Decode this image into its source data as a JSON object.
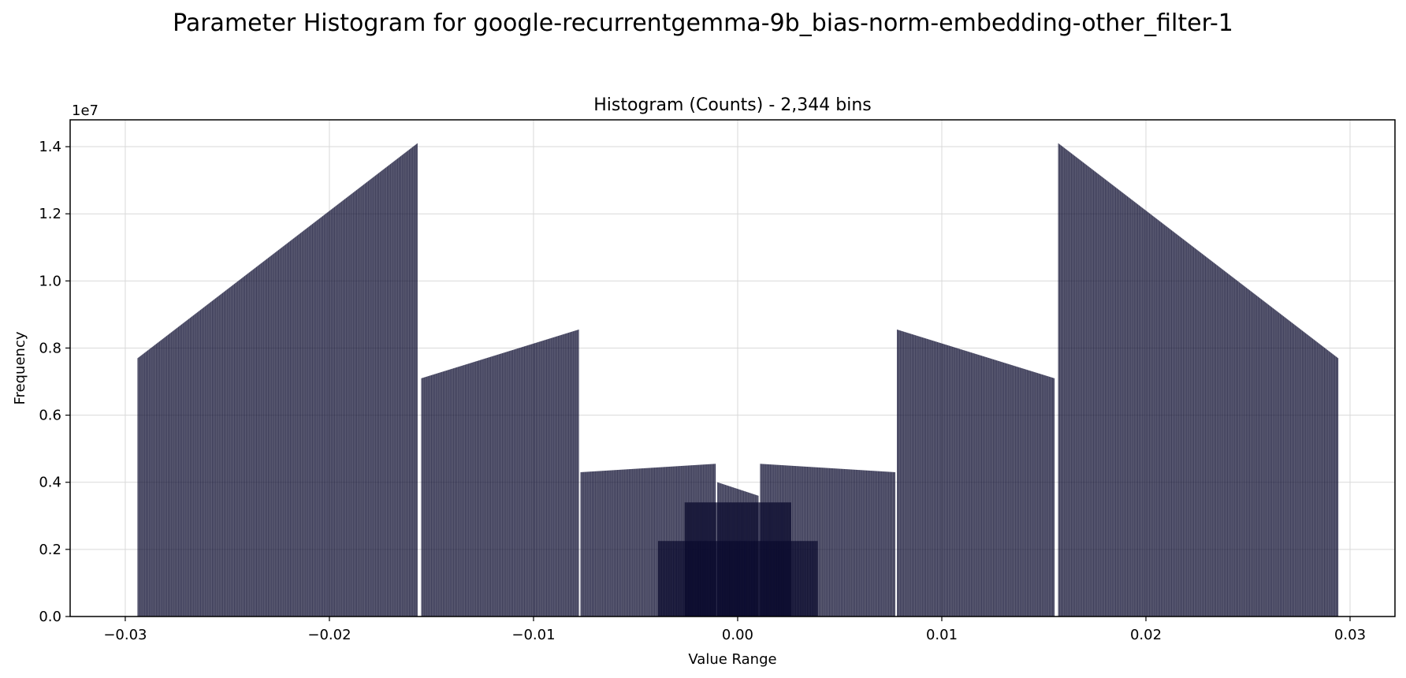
{
  "page_title": "Parameter Histogram for google-recurrentgemma-9b_bias-norm-embedding-other_filter-1",
  "chart_data": {
    "type": "bar",
    "title": "Histogram (Counts) - 2,344 bins",
    "xlabel": "Value Range",
    "ylabel": "Frequency",
    "y_offset_label": "1e7",
    "xlim": [
      -0.0327,
      0.0322
    ],
    "ylim": [
      0,
      1.48
    ],
    "y_scale": 10000000,
    "grid": true,
    "xticks": [
      -0.03,
      -0.02,
      -0.01,
      0.0,
      0.01,
      0.02,
      0.03
    ],
    "xtick_labels": [
      "−0.03",
      "−0.02",
      "−0.01",
      "0.00",
      "0.01",
      "0.02",
      "0.03"
    ],
    "yticks": [
      0.0,
      0.2,
      0.4,
      0.6,
      0.8,
      1.0,
      1.2,
      1.4
    ],
    "ytick_labels": [
      "0.0",
      "0.2",
      "0.4",
      "0.6",
      "0.8",
      "1.0",
      "1.2",
      "1.4"
    ],
    "bar_color": "#0b0b2e",
    "segments": [
      {
        "x_start": -0.0294,
        "x_end": -0.0157,
        "y_start": 0.77,
        "y_end": 1.41
      },
      {
        "x_start": -0.0155,
        "x_end": -0.0078,
        "y_start": 0.71,
        "y_end": 0.855
      },
      {
        "x_start": -0.0077,
        "x_end": -0.0011,
        "y_start": 0.43,
        "y_end": 0.455
      },
      {
        "x_start": -0.0039,
        "x_end": 0.0039,
        "y_start": 0.225,
        "y_end": 0.225
      },
      {
        "x_start": -0.0026,
        "x_end": 0.0026,
        "y_start": 0.34,
        "y_end": 0.34
      },
      {
        "x_start": -0.001,
        "x_end": 0.001,
        "y_start": 0.4,
        "y_end": 0.36
      },
      {
        "x_start": 0.0011,
        "x_end": 0.0077,
        "y_start": 0.455,
        "y_end": 0.43
      },
      {
        "x_start": 0.0078,
        "x_end": 0.0155,
        "y_start": 0.855,
        "y_end": 0.71
      },
      {
        "x_start": 0.0157,
        "x_end": 0.0294,
        "y_start": 1.41,
        "y_end": 0.77
      }
    ]
  }
}
